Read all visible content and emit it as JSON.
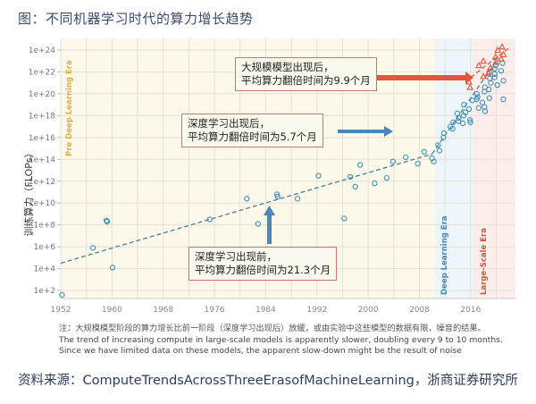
{
  "title": "图：不同机器学习时代的算力增长趋势",
  "annotations": {
    "large_scale": {
      "line1": "大规模模型出现后，",
      "line2": "平均算力翻倍时间为9.9个月"
    },
    "deep_learning": {
      "line1": "深度学习出现后，",
      "line2": "平均算力翻倍时间为5.7个月"
    },
    "pre_dl": {
      "line1": "深度学习出现前，",
      "line2": "平均算力翻倍时间为21.3个月"
    }
  },
  "note": {
    "cn": "注：大规模模型阶段的算力增长比前一阶段（深度学习出现后）放缓，或由实验中这些模型的数据有限，噪音的结果。",
    "en": "The trend of increasing compute in large-scale models is apparently slower, doubling every 9 to 10 months. Since we have limited data on these models, the apparent slow-down might be the result of noise"
  },
  "source": "资料来源：ComputeTrendsAcrossThreeErasofMachineLearning，浙商证券研究所",
  "colors": {
    "pre_dl_bg": "#fcf8ea",
    "dl_bg": "#eef6fb",
    "ls_bg": "#fdeeec",
    "pre_dl_label": "#d9b43a",
    "dl_label": "#3a8fc0",
    "ls_label": "#d2553f",
    "circle": "#3d8fb5",
    "triangle": "#e2533c",
    "arrow_blue": "#4a86b9",
    "arrow_red": "#e2553f",
    "box_border": "#c9756a"
  },
  "chart_data": {
    "type": "scatter",
    "title": "不同机器学习时代的算力增长趋势",
    "xlabel": "",
    "ylabel": "训练算力（FLOPs）",
    "x_ticks": [
      "1952",
      "1960",
      "1968",
      "1976",
      "1984",
      "1992",
      "2000",
      "2008",
      "2016"
    ],
    "y_ticks": [
      "1e+2",
      "1e+4",
      "1e+6",
      "1e+8",
      "1e+10",
      "1e+12",
      "1e+14",
      "1e+16",
      "1e+18",
      "1e+20",
      "1e+22",
      "1e+24"
    ],
    "xlim": [
      1952,
      2022
    ],
    "ylim_log10": [
      1,
      25
    ],
    "y_scale": "log",
    "grid": true,
    "eras": [
      {
        "name": "Pre Deep Learning Era",
        "start": 1952,
        "end": 2010
      },
      {
        "name": "Deep Learning Era",
        "start": 2010,
        "end": 2016
      },
      {
        "name": "Large-Scale Era",
        "start": 2016,
        "end": 2022
      }
    ],
    "trend_lines": [
      {
        "era": "Pre Deep Learning Era",
        "doubling_months": 21.3,
        "from": [
          1952,
          4.5
        ],
        "to": [
          2010,
          14.5
        ]
      },
      {
        "era": "Deep Learning Era",
        "doubling_months": 5.7,
        "from": [
          2010,
          14.5
        ],
        "to": [
          2020,
          23
        ]
      },
      {
        "era": "Large-Scale Era",
        "doubling_months": 9.9,
        "from": [
          2016,
          21.5
        ],
        "to": [
          2022,
          24.2
        ]
      }
    ],
    "series": [
      {
        "name": "Pre Deep Learning / Deep Learning models (circles)",
        "marker": "circle",
        "points_year_log10flops": [
          [
            1952,
            1.6
          ],
          [
            1957,
            5.9
          ],
          [
            1959,
            8.3
          ],
          [
            1959,
            8.4
          ],
          [
            1960,
            4.1
          ],
          [
            1975,
            8.5
          ],
          [
            1981,
            10.4
          ],
          [
            1983,
            8.1
          ],
          [
            1986,
            10.8
          ],
          [
            1986,
            10.6
          ],
          [
            1989,
            10.4
          ],
          [
            1992,
            12.5
          ],
          [
            1996,
            8.6
          ],
          [
            1997,
            12.4
          ],
          [
            1998,
            11.5
          ],
          [
            1999,
            13.5
          ],
          [
            2001,
            11.8
          ],
          [
            2003,
            12.3
          ],
          [
            2004,
            13.8
          ],
          [
            2006,
            14.2
          ],
          [
            2008,
            13.6
          ],
          [
            2009,
            14.7
          ],
          [
            2010,
            13.8
          ],
          [
            2010,
            14.1
          ],
          [
            2011,
            15.3
          ],
          [
            2011,
            14.8
          ],
          [
            2012,
            16.0
          ],
          [
            2012,
            16.4
          ],
          [
            2013,
            16.8
          ],
          [
            2013,
            17.0
          ],
          [
            2013,
            17.4
          ],
          [
            2014,
            17.5
          ],
          [
            2014,
            17.8
          ],
          [
            2014,
            18.2
          ],
          [
            2015,
            18.3
          ],
          [
            2015,
            18.0
          ],
          [
            2015,
            19.0
          ],
          [
            2015,
            17.3
          ],
          [
            2016,
            18.6
          ],
          [
            2016,
            19.4
          ],
          [
            2016,
            17.4
          ],
          [
            2016,
            17.6
          ],
          [
            2017,
            19.5
          ],
          [
            2017,
            20.0
          ],
          [
            2017,
            18.7
          ],
          [
            2017,
            19.7
          ],
          [
            2018,
            20.2
          ],
          [
            2018,
            19.2
          ],
          [
            2018,
            20.6
          ],
          [
            2018,
            18.4
          ],
          [
            2018,
            18.8
          ],
          [
            2019,
            21.0
          ],
          [
            2019,
            20.4
          ],
          [
            2019,
            21.4
          ],
          [
            2019,
            19.6
          ],
          [
            2019,
            22.0
          ],
          [
            2020,
            21.5
          ],
          [
            2020,
            22.3
          ],
          [
            2020,
            20.8
          ],
          [
            2020,
            21.8
          ],
          [
            2020,
            22.6
          ],
          [
            2021,
            22.8
          ],
          [
            2021,
            21.2
          ],
          [
            2021,
            22.1
          ],
          [
            2021,
            19.5
          ]
        ]
      },
      {
        "name": "Large-Scale models (triangles)",
        "marker": "triangle",
        "points_year_log10flops": [
          [
            2016,
            21.1
          ],
          [
            2016,
            20.6
          ],
          [
            2017,
            22.6
          ],
          [
            2018,
            21.6
          ],
          [
            2018,
            23.0
          ],
          [
            2019,
            21.9
          ],
          [
            2019,
            22.4
          ],
          [
            2020,
            23.4
          ],
          [
            2020,
            22.9
          ],
          [
            2020,
            24.0
          ],
          [
            2021,
            23.6
          ],
          [
            2021,
            24.3
          ],
          [
            2021,
            23.2
          ]
        ]
      }
    ]
  }
}
